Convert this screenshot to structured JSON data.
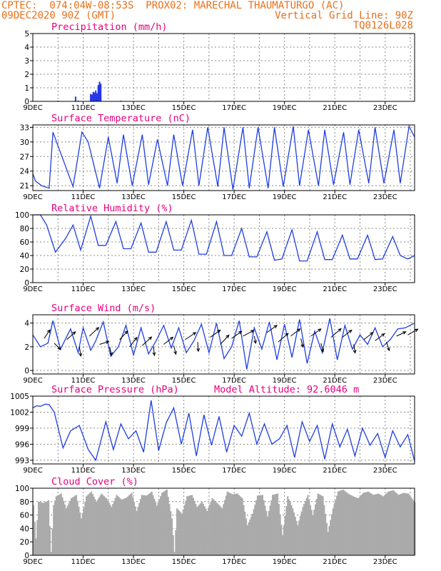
{
  "header": {
    "line1_left": "CPTEC:  074:04W-08:53S  PROX02: MARECHAL THAUMATURGO (AC)",
    "line2_left": "09DEC2020 90Z (GMT)",
    "line2_right": "Vertical Grid Line: 90Z",
    "line3_right": "TQ0126L028"
  },
  "colors": {
    "header": "#e8701a",
    "title": "#e6007e",
    "line": "#1f3fe0",
    "bar": "#2436e8",
    "cloud": "#aaaaaa"
  },
  "chart_data": [
    {
      "type": "bar",
      "title": "Precipitation (mm/h)",
      "ylim": [
        0,
        5
      ],
      "yticks": [
        "0",
        "1",
        "2",
        "3",
        "4",
        "5"
      ],
      "xticks": [
        "9DEC",
        "11DEC",
        "13DEC",
        "15DEC",
        "17DEC",
        "19DEC",
        "21DEC",
        "23DEC"
      ],
      "x_start_day": 9.0,
      "x_end_day": 24.17,
      "x": [
        9.5,
        10.0,
        10.7,
        10.8,
        11.3,
        11.35,
        11.4,
        11.45,
        11.5,
        11.55,
        11.6,
        11.65,
        11.7,
        12.5,
        14.5,
        16.5,
        18.5,
        19.5
      ],
      "values": [
        0.03,
        0.05,
        0.35,
        0.05,
        0.55,
        0.5,
        0.7,
        0.65,
        0.8,
        0.6,
        1.2,
        1.45,
        1.3,
        0.05,
        0.03,
        0.03,
        0.03,
        0.03
      ]
    },
    {
      "type": "line",
      "title": "Surface Temperature (nC)",
      "ylim": [
        20,
        33.5
      ],
      "yticks": [
        "21",
        "24",
        "27",
        "30",
        "33"
      ],
      "xticks": [
        "9DEC",
        "11DEC",
        "13DEC",
        "15DEC",
        "17DEC",
        "19DEC",
        "21DEC",
        "23DEC"
      ],
      "x": [
        9.0,
        9.1,
        9.35,
        9.65,
        9.8,
        10.6,
        10.95,
        11.2,
        11.65,
        12.0,
        12.35,
        12.6,
        12.95,
        13.35,
        13.6,
        13.95,
        14.35,
        14.6,
        14.95,
        15.35,
        15.6,
        15.95,
        16.35,
        16.6,
        16.95,
        17.35,
        17.6,
        17.95,
        18.35,
        18.6,
        18.95,
        19.35,
        19.6,
        19.95,
        20.35,
        20.6,
        20.95,
        21.35,
        21.6,
        21.95,
        22.35,
        22.6,
        22.95,
        23.35,
        23.6,
        23.95,
        24.17
      ],
      "values": [
        23.5,
        22.0,
        21.0,
        20.5,
        32.0,
        20.8,
        32.0,
        30.0,
        20.5,
        31.0,
        21.5,
        31.5,
        21.0,
        31.5,
        21.2,
        30.5,
        21.0,
        31.5,
        21.0,
        32.5,
        21.0,
        33.0,
        20.8,
        33.0,
        20.2,
        33.0,
        20.5,
        33.0,
        20.5,
        33.0,
        20.8,
        33.2,
        21.0,
        32.5,
        21.0,
        32.5,
        21.2,
        32.0,
        21.2,
        32.5,
        21.5,
        33.0,
        21.5,
        32.5,
        21.5,
        33.2,
        31.0
      ]
    },
    {
      "type": "line",
      "title": "Relative Humidity (%)",
      "ylim": [
        0,
        100
      ],
      "yticks": [
        "0",
        "20",
        "40",
        "60",
        "80",
        "100"
      ],
      "xticks": [
        "9DEC",
        "11DEC",
        "13DEC",
        "15DEC",
        "17DEC",
        "19DEC",
        "21DEC",
        "23DEC"
      ],
      "x": [
        9.0,
        9.3,
        9.55,
        9.9,
        10.3,
        10.6,
        10.9,
        11.3,
        11.6,
        11.9,
        12.3,
        12.6,
        12.9,
        13.3,
        13.6,
        13.9,
        14.3,
        14.6,
        14.9,
        15.3,
        15.6,
        15.9,
        16.3,
        16.6,
        16.9,
        17.3,
        17.6,
        17.9,
        18.3,
        18.6,
        18.9,
        19.3,
        19.6,
        19.9,
        20.3,
        20.6,
        20.9,
        21.3,
        21.6,
        21.9,
        22.3,
        22.6,
        22.9,
        23.3,
        23.6,
        23.9,
        24.17
      ],
      "values": [
        100,
        100,
        85,
        45,
        65,
        85,
        48,
        98,
        55,
        55,
        90,
        50,
        50,
        88,
        45,
        45,
        90,
        48,
        48,
        92,
        42,
        42,
        90,
        40,
        40,
        80,
        38,
        38,
        75,
        33,
        35,
        78,
        32,
        32,
        75,
        34,
        34,
        70,
        35,
        35,
        70,
        34,
        35,
        68,
        40,
        35,
        40
      ]
    },
    {
      "type": "line",
      "title": "Surface Wind (m/s)",
      "ylim": [
        -0.3,
        4.7
      ],
      "yticks": [
        "0",
        "2",
        "4"
      ],
      "xticks": [
        "9DEC",
        "11DEC",
        "13DEC",
        "15DEC",
        "17DEC",
        "19DEC",
        "21DEC",
        "23DEC"
      ],
      "x": [
        9.0,
        9.3,
        9.6,
        9.8,
        10.1,
        10.5,
        10.8,
        11.0,
        11.3,
        11.5,
        11.8,
        12.1,
        12.4,
        12.7,
        13.0,
        13.3,
        13.6,
        13.9,
        14.2,
        14.5,
        14.8,
        15.1,
        15.4,
        15.7,
        16.0,
        16.3,
        16.6,
        16.9,
        17.2,
        17.5,
        17.8,
        18.1,
        18.4,
        18.7,
        19.0,
        19.3,
        19.6,
        19.9,
        20.2,
        20.5,
        20.8,
        21.1,
        21.4,
        21.7,
        22.0,
        22.3,
        22.6,
        22.9,
        23.2,
        23.5,
        23.8,
        24.17
      ],
      "values": [
        3.0,
        2.0,
        2.3,
        4.2,
        1.8,
        3.5,
        1.5,
        3.6,
        1.7,
        2.5,
        4.1,
        1.2,
        2.0,
        3.8,
        1.3,
        3.6,
        1.4,
        2.5,
        3.8,
        1.9,
        3.6,
        1.5,
        2.5,
        3.9,
        1.5,
        4.0,
        1.0,
        2.0,
        4.2,
        0.1,
        3.6,
        1.8,
        4.1,
        0.9,
        3.9,
        1.1,
        4.3,
        0.6,
        3.3,
        1.5,
        4.4,
        0.9,
        3.8,
        1.8,
        3.0,
        2.2,
        3.6,
        2.0,
        2.6,
        3.5,
        3.6,
        4.0
      ],
      "barbs": [
        {
          "x": 9.45,
          "v": 2.7,
          "dx": 8,
          "dy": -12
        },
        {
          "x": 9.85,
          "v": 2.3,
          "dx": 9,
          "dy": 9
        },
        {
          "x": 10.35,
          "v": 2.6,
          "dx": 12,
          "dy": -11
        },
        {
          "x": 10.85,
          "v": 2.0,
          "dx": 2,
          "dy": 13
        },
        {
          "x": 11.25,
          "v": 2.9,
          "dx": 13,
          "dy": -12
        },
        {
          "x": 11.65,
          "v": 2.2,
          "dx": 13,
          "dy": -4
        },
        {
          "x": 12.05,
          "v": 2.0,
          "dx": 3,
          "dy": 12
        },
        {
          "x": 12.45,
          "v": 2.6,
          "dx": 11,
          "dy": -12
        },
        {
          "x": 12.85,
          "v": 2.0,
          "dx": 10,
          "dy": -13
        },
        {
          "x": 13.35,
          "v": 2.1,
          "dx": 13,
          "dy": -12
        },
        {
          "x": 13.8,
          "v": 2.0,
          "dx": 1,
          "dy": 12
        },
        {
          "x": 14.2,
          "v": 2.2,
          "dx": 13,
          "dy": -10
        },
        {
          "x": 14.6,
          "v": 2.1,
          "dx": 3,
          "dy": 12
        },
        {
          "x": 15.05,
          "v": 2.6,
          "dx": 15,
          "dy": -10
        },
        {
          "x": 15.55,
          "v": 2.4,
          "dx": 1,
          "dy": 13
        },
        {
          "x": 16.05,
          "v": 2.8,
          "dx": 14,
          "dy": -10
        },
        {
          "x": 16.45,
          "v": 2.2,
          "dx": 12,
          "dy": -13
        },
        {
          "x": 16.9,
          "v": 2.7,
          "dx": 14,
          "dy": -10
        },
        {
          "x": 17.35,
          "v": 2.9,
          "dx": 15,
          "dy": -8
        },
        {
          "x": 17.8,
          "v": 2.9,
          "dx": 2,
          "dy": 10
        },
        {
          "x": 18.3,
          "v": 3.2,
          "dx": 14,
          "dy": -10
        },
        {
          "x": 18.75,
          "v": 2.4,
          "dx": 14,
          "dy": -12
        },
        {
          "x": 19.25,
          "v": 2.9,
          "dx": 13,
          "dy": -10
        },
        {
          "x": 19.65,
          "v": 2.7,
          "dx": 3,
          "dy": 12
        },
        {
          "x": 20.05,
          "v": 2.9,
          "dx": 14,
          "dy": -10
        },
        {
          "x": 20.45,
          "v": 2.3,
          "dx": 3,
          "dy": 12
        },
        {
          "x": 20.85,
          "v": 2.8,
          "dx": 14,
          "dy": -12
        },
        {
          "x": 21.3,
          "v": 2.8,
          "dx": 13,
          "dy": -10
        },
        {
          "x": 21.75,
          "v": 2.2,
          "dx": 2,
          "dy": 12
        },
        {
          "x": 22.15,
          "v": 2.6,
          "dx": 13,
          "dy": -10
        },
        {
          "x": 22.6,
          "v": 2.5,
          "dx": 13,
          "dy": -10
        },
        {
          "x": 23.05,
          "v": 2.4,
          "dx": 4,
          "dy": 12
        },
        {
          "x": 23.45,
          "v": 2.9,
          "dx": 13,
          "dy": -6
        },
        {
          "x": 23.9,
          "v": 3.0,
          "dx": 14,
          "dy": -8
        }
      ]
    },
    {
      "type": "line",
      "title": "Surface Pressure (hPa)",
      "annotation": "Model Altitude: 92.6046 m",
      "ylim": [
        992.3,
        1005
      ],
      "yticks": [
        "993",
        "996",
        "999",
        "1002",
        "1005"
      ],
      "xticks": [
        "9DEC",
        "11DEC",
        "13DEC",
        "15DEC",
        "17DEC",
        "19DEC",
        "21DEC",
        "23DEC"
      ],
      "x": [
        9.0,
        9.15,
        9.3,
        9.5,
        9.65,
        9.85,
        10.2,
        10.5,
        10.85,
        11.2,
        11.5,
        11.9,
        12.2,
        12.5,
        12.8,
        13.1,
        13.4,
        13.7,
        14.0,
        14.3,
        14.6,
        14.9,
        15.2,
        15.5,
        15.8,
        16.1,
        16.4,
        16.7,
        17.0,
        17.3,
        17.6,
        17.9,
        18.2,
        18.5,
        18.8,
        19.1,
        19.4,
        19.7,
        20.0,
        20.3,
        20.6,
        20.9,
        21.2,
        21.5,
        21.8,
        22.1,
        22.4,
        22.7,
        23.0,
        23.3,
        23.6,
        23.9,
        24.17
      ],
      "values": [
        1002.8,
        1003.2,
        1003.1,
        1003.5,
        1003.4,
        1002.0,
        995.3,
        998.5,
        999.5,
        995.0,
        993.0,
        1000.2,
        995.0,
        999.8,
        997.0,
        998.5,
        994.5,
        1004.2,
        994.8,
        1000.0,
        1002.8,
        996.0,
        1001.8,
        993.8,
        1001.5,
        995.8,
        1001.2,
        994.5,
        999.5,
        997.5,
        1001.8,
        996.0,
        999.8,
        996.0,
        997.0,
        999.5,
        993.5,
        1000.2,
        996.5,
        999.5,
        993.2,
        999.8,
        995.5,
        998.8,
        993.8,
        999.0,
        995.8,
        998.0,
        993.5,
        998.5,
        995.5,
        997.8,
        992.8
      ]
    },
    {
      "type": "area",
      "title": "Cloud Cover (%)",
      "ylim": [
        0,
        100
      ],
      "yticks": [
        "0",
        "20",
        "40",
        "60",
        "80",
        "100"
      ],
      "xticks": [
        "9DEC",
        "11DEC",
        "13DEC",
        "15DEC",
        "17DEC",
        "19DEC",
        "21DEC",
        "23DEC"
      ],
      "x": [
        9.0,
        9.1,
        9.2,
        9.4,
        9.6,
        9.7,
        9.8,
        9.9,
        10.1,
        10.3,
        10.5,
        10.7,
        10.9,
        11.1,
        11.3,
        11.5,
        11.7,
        11.9,
        12.1,
        12.3,
        12.5,
        12.7,
        12.9,
        13.1,
        13.3,
        13.5,
        13.7,
        13.9,
        14.1,
        14.3,
        14.5,
        14.6,
        14.7,
        14.9,
        15.1,
        15.3,
        15.5,
        15.7,
        15.9,
        16.1,
        16.3,
        16.5,
        16.7,
        16.9,
        17.1,
        17.3,
        17.5,
        17.7,
        17.9,
        18.1,
        18.3,
        18.5,
        18.7,
        18.9,
        19.1,
        19.3,
        19.5,
        19.7,
        19.9,
        20.1,
        20.3,
        20.5,
        20.7,
        20.9,
        21.1,
        21.3,
        21.5,
        21.7,
        21.9,
        22.1,
        22.3,
        22.5,
        22.7,
        22.9,
        23.1,
        23.3,
        23.5,
        23.7,
        23.9,
        24.17
      ],
      "values": [
        75,
        25,
        80,
        78,
        82,
        5,
        75,
        88,
        92,
        70,
        85,
        90,
        55,
        88,
        95,
        80,
        92,
        85,
        72,
        90,
        83,
        86,
        93,
        66,
        90,
        89,
        95,
        74,
        93,
        98,
        55,
        5,
        70,
        62,
        88,
        90,
        72,
        80,
        66,
        85,
        78,
        70,
        95,
        91,
        92,
        85,
        45,
        62,
        89,
        90,
        58,
        90,
        92,
        30,
        88,
        70,
        45,
        72,
        90,
        60,
        92,
        88,
        35,
        70,
        95,
        98,
        92,
        88,
        85,
        93,
        95,
        90,
        92,
        88,
        95,
        97,
        90,
        93,
        92,
        78
      ]
    }
  ]
}
